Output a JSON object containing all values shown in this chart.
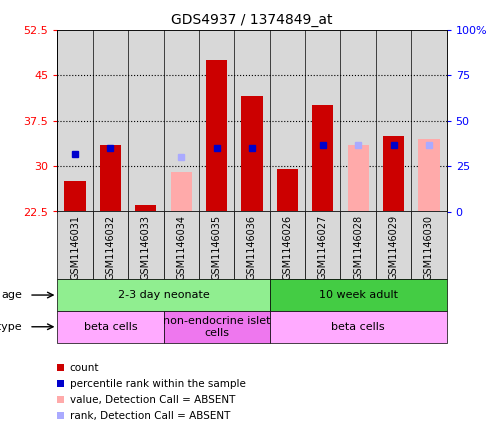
{
  "title": "GDS4937 / 1374849_at",
  "samples": [
    "GSM1146031",
    "GSM1146032",
    "GSM1146033",
    "GSM1146034",
    "GSM1146035",
    "GSM1146036",
    "GSM1146026",
    "GSM1146027",
    "GSM1146028",
    "GSM1146029",
    "GSM1146030"
  ],
  "count_values": [
    27.5,
    33.5,
    23.5,
    null,
    47.5,
    41.5,
    29.5,
    40.0,
    null,
    35.0,
    null
  ],
  "rank_values": [
    32.0,
    33.0,
    null,
    null,
    33.0,
    33.0,
    null,
    33.5,
    null,
    33.5,
    null
  ],
  "absent_count_values": [
    null,
    null,
    null,
    29.0,
    null,
    null,
    null,
    null,
    33.5,
    null,
    34.5
  ],
  "absent_rank_values": [
    null,
    null,
    null,
    31.5,
    null,
    null,
    null,
    null,
    33.5,
    null,
    33.5
  ],
  "ylim_left": [
    22.5,
    52.5
  ],
  "ylim_right": [
    0,
    100
  ],
  "yticks_left": [
    22.5,
    30.0,
    37.5,
    45.0,
    52.5
  ],
  "ytick_labels_left": [
    "22.5",
    "30",
    "37.5",
    "45",
    "52.5"
  ],
  "yticks_right": [
    0,
    25,
    50,
    75,
    100
  ],
  "ytick_labels_right": [
    "0",
    "25",
    "50",
    "75",
    "100%"
  ],
  "hlines": [
    30.0,
    37.5,
    45.0
  ],
  "bar_bottom": 22.5,
  "bar_width": 0.6,
  "count_color": "#cc0000",
  "rank_color": "#0000cc",
  "absent_count_color": "#ffaaaa",
  "absent_rank_color": "#aaaaff",
  "age_groups": [
    {
      "label": "2-3 day neonate",
      "start": 0,
      "end": 6,
      "color": "#90ee90"
    },
    {
      "label": "10 week adult",
      "start": 6,
      "end": 11,
      "color": "#44cc44"
    }
  ],
  "cell_type_groups": [
    {
      "label": "beta cells",
      "start": 0,
      "end": 3,
      "color": "#ffaaff"
    },
    {
      "label": "non-endocrine islet\ncells",
      "start": 3,
      "end": 6,
      "color": "#ee77ee"
    },
    {
      "label": "beta cells",
      "start": 6,
      "end": 11,
      "color": "#ffaaff"
    }
  ],
  "legend_items": [
    {
      "label": "count",
      "color": "#cc0000"
    },
    {
      "label": "percentile rank within the sample",
      "color": "#0000cc"
    },
    {
      "label": "value, Detection Call = ABSENT",
      "color": "#ffaaaa"
    },
    {
      "label": "rank, Detection Call = ABSENT",
      "color": "#aaaaff"
    }
  ],
  "bg_color": "#d8d8d8"
}
